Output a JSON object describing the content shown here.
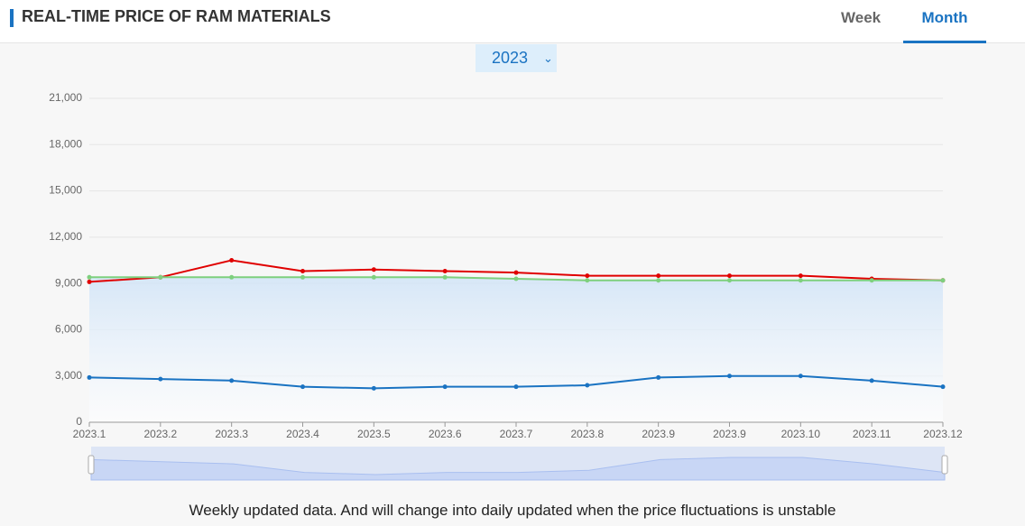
{
  "header": {
    "title": "REAL-TIME PRICE OF RAM MATERIALS"
  },
  "tabs": [
    "Week",
    "Month"
  ],
  "year_select": "2023",
  "chart_data": {
    "type": "line",
    "categories": [
      "2023.1",
      "2023.2",
      "2023.3",
      "2023.4",
      "2023.5",
      "2023.6",
      "2023.7",
      "2023.8",
      "2023.9",
      "2023.9",
      "2023.10",
      "2023.11",
      "2023.12"
    ],
    "series": [
      {
        "color": "#e00000",
        "values": [
          9100,
          9400,
          10500,
          9800,
          9900,
          9800,
          9700,
          9500,
          9500,
          9500,
          9500,
          9300,
          9200
        ]
      },
      {
        "color": "#7ed07e",
        "values": [
          9400,
          9400,
          9400,
          9400,
          9400,
          9400,
          9300,
          9200,
          9200,
          9200,
          9200,
          9200,
          9200
        ],
        "area": true
      },
      {
        "color": "#1a73c2",
        "values": [
          2900,
          2800,
          2700,
          2300,
          2200,
          2300,
          2300,
          2400,
          2900,
          3000,
          3000,
          2700,
          2300
        ],
        "zoom": true
      }
    ],
    "ylim": [
      0,
      21000
    ],
    "yticks": [
      0,
      {
        "value": 3000,
        "label": "3,000"
      },
      {
        "value": 6000,
        "label": "6,000"
      },
      {
        "value": 9000,
        "label": "9,000"
      },
      {
        "value": 12000,
        "label": "12,000"
      },
      {
        "value": 15000,
        "label": "15,000"
      },
      {
        "value": 18000,
        "label": "18,000"
      },
      {
        "value": 21000,
        "label": "21,000"
      }
    ],
    "grid": true
  },
  "footnote": "Weekly updated data. And will change into daily updated when the price fluctuations is unstable"
}
